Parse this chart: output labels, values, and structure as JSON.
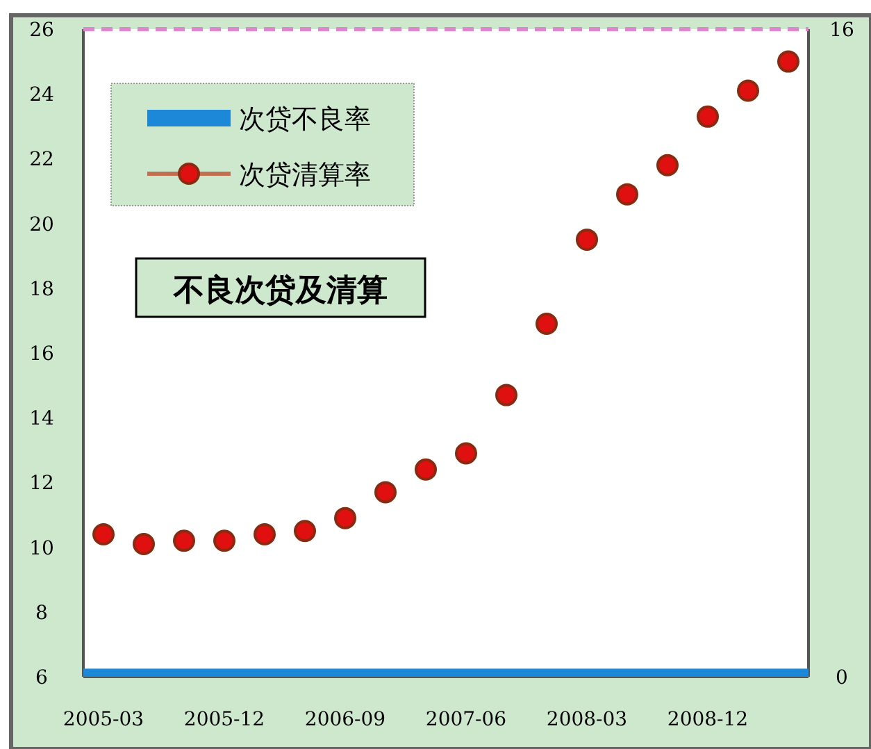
{
  "chart_data": {
    "type": "scatter",
    "title": "不良次贷及清算",
    "categories": [
      "2005-03",
      null,
      null,
      "2005-12",
      null,
      null,
      "2006-09",
      null,
      null,
      "2007-06",
      null,
      null,
      "2008-03",
      null,
      null,
      "2008-12",
      null,
      null
    ],
    "series": [
      {
        "name": "次贷清算率",
        "color": "#e01010",
        "marker": "circle",
        "values": [
          10.4,
          10.1,
          10.2,
          10.2,
          10.4,
          10.5,
          10.9,
          11.7,
          12.4,
          12.9,
          14.7,
          16.9,
          19.5,
          20.9,
          21.8,
          23.3,
          24.1,
          25.0
        ]
      }
    ],
    "bands": [
      {
        "axis": "y2",
        "from": 0,
        "to": 0.2,
        "label": "次贷不良率",
        "color": "#1e88d8"
      }
    ],
    "ylim": [
      6,
      26
    ],
    "yticks": [
      6,
      8,
      10,
      12,
      14,
      16,
      18,
      20,
      22,
      24,
      26
    ],
    "y2lim": [
      0,
      16
    ],
    "y2ticks": [
      0,
      16
    ],
    "ref_lines": [
      {
        "axis": "y",
        "value": 26,
        "color": "#dd88cc",
        "line_style": "dashed"
      }
    ],
    "legend": "top left",
    "grid": false
  }
}
